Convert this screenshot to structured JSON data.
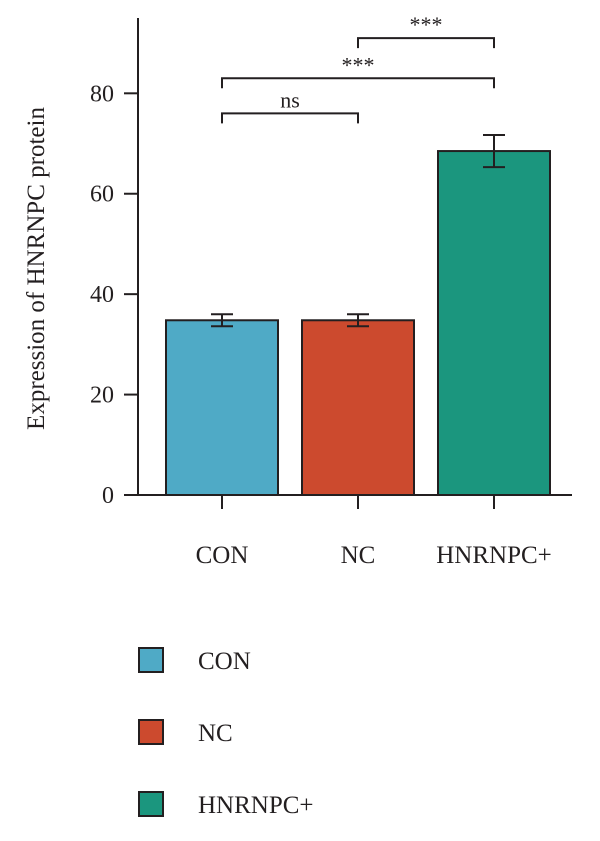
{
  "chart_data": {
    "type": "bar",
    "title": "",
    "xlabel": "",
    "ylabel": "Expression of HNRNPC protein",
    "categories": [
      "CON",
      "NC",
      "HNRNPC+"
    ],
    "values": [
      34.8,
      34.8,
      68.5
    ],
    "errors": [
      1.2,
      1.2,
      3.2
    ],
    "colors": [
      "#4faac6",
      "#cc4a2e",
      "#1b967e"
    ],
    "ylim": [
      0,
      95
    ],
    "yticks": [
      0,
      20,
      40,
      60,
      80
    ],
    "grid": false,
    "legend": {
      "placement": "bottom-left",
      "entries": [
        "CON",
        "NC",
        "HNRNPC+"
      ]
    },
    "significance": [
      {
        "from": 0,
        "to": 1,
        "label": "ns",
        "y": 76
      },
      {
        "from": 0,
        "to": 2,
        "label": "***",
        "y": 83
      },
      {
        "from": 1,
        "to": 2,
        "label": "***",
        "y": 91
      }
    ]
  }
}
